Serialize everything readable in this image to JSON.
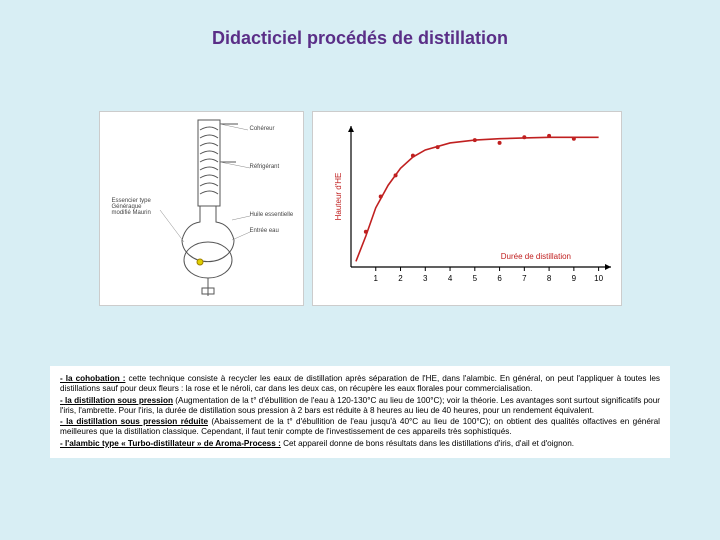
{
  "title": "Didacticiel procédés de distillation",
  "apparatus": {
    "labels": {
      "cohereur": "Cohéreur",
      "refrigerant": "Réfrigérant",
      "essencier": "Essencier type\nGénéraque\nmodifié Maurin",
      "huile": "Huile essentielle",
      "entree": "Entrée eau"
    }
  },
  "chart": {
    "type": "line",
    "ylabel": "Hauteur d'HE",
    "xlabel": "Durée de distillation",
    "x_ticks": [
      1,
      2,
      3,
      4,
      5,
      6,
      7,
      8,
      9,
      10
    ],
    "xlim": [
      0,
      10.5
    ],
    "ylim": [
      0,
      100
    ],
    "curve_color": "#c02020",
    "point_color": "#c02020",
    "axis_color": "#000000",
    "label_color": "#c02020",
    "tick_color": "#000000",
    "curve": [
      {
        "x": 0.2,
        "y": 4
      },
      {
        "x": 0.6,
        "y": 22
      },
      {
        "x": 1,
        "y": 42
      },
      {
        "x": 1.5,
        "y": 58
      },
      {
        "x": 2,
        "y": 70
      },
      {
        "x": 2.5,
        "y": 78
      },
      {
        "x": 3,
        "y": 83
      },
      {
        "x": 4,
        "y": 88
      },
      {
        "x": 5,
        "y": 90
      },
      {
        "x": 6,
        "y": 91
      },
      {
        "x": 7,
        "y": 91.5
      },
      {
        "x": 8,
        "y": 92
      },
      {
        "x": 9,
        "y": 92
      },
      {
        "x": 10,
        "y": 92
      }
    ],
    "points": [
      {
        "x": 0.6,
        "y": 25
      },
      {
        "x": 1.2,
        "y": 50
      },
      {
        "x": 1.8,
        "y": 65
      },
      {
        "x": 2.5,
        "y": 79
      },
      {
        "x": 3.5,
        "y": 85
      },
      {
        "x": 5,
        "y": 90
      },
      {
        "x": 6,
        "y": 88
      },
      {
        "x": 7,
        "y": 92
      },
      {
        "x": 8,
        "y": 93
      },
      {
        "x": 9,
        "y": 91
      }
    ]
  },
  "text": {
    "p1_label": "- la cohobation :",
    "p1_body": " cette technique consiste à recycler les eaux de distillation après séparation de l'HE, dans l'alambic. En général, on peut l'appliquer à toutes les distillations sauf pour deux fleurs : la rose et le néroli, car dans les deux cas, on récupère les eaux florales pour commercialisation.",
    "p2_label": "- la distillation sous pression",
    "p2_body": "  (Augmentation de la t° d'ébullition de l'eau à 120-130°C au lieu de 100°C); voir la théorie. Les avantages sont surtout significatifs pour l'iris, l'ambrette. Pour l'iris, la durée de distillation sous pression à 2 bars est réduite à 8 heures au lieu de 40 heures, pour un rendement équivalent.",
    "p3_label": "- la distillation sous pression réduite",
    "p3_body": " (Abaissement de la t° d'ébullition de l'eau jusqu'à 40°C au lieu de 100°C); on obtient des qualités olfactives en général meilleures que la distillation classique. Cependant, il faut tenir compte de l'investissement de ces appareils très sophistiqués.",
    "p4_label": "- l'alambic type « Turbo-distillateur » de Aroma-Process :",
    "p4_body": " Cet appareil donne de bons résultats dans les distillations d'iris, d'ail et d'oignon."
  }
}
